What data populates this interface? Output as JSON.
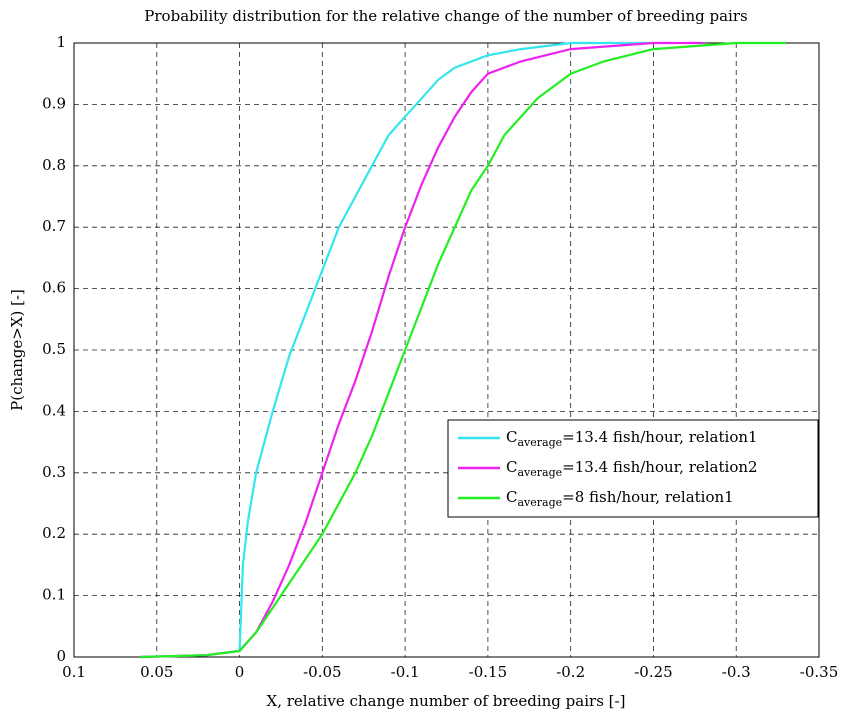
{
  "chart_data": {
    "type": "line",
    "title": "Probability distribution for the relative change of the number of breeding pairs",
    "x_label": "X, relative change number of breeding pairs [-]",
    "y_label": "P(change>X) [-]",
    "xlim": [
      0.1,
      -0.35
    ],
    "ylim": [
      0,
      1
    ],
    "xticks": [
      0.1,
      0.05,
      0,
      -0.05,
      -0.1,
      -0.15,
      -0.2,
      -0.25,
      -0.3,
      -0.35
    ],
    "yticks": [
      0,
      0.1,
      0.2,
      0.3,
      0.4,
      0.5,
      0.6,
      0.7,
      0.8,
      0.9,
      1
    ],
    "grid": true,
    "legend": "lower right",
    "series": [
      {
        "name": [
          "C",
          "average",
          "=13.4 fish/hour, relation1"
        ],
        "color": "#33e6ee",
        "x": [
          0.06,
          0.02,
          0,
          -0.002,
          -0.005,
          -0.01,
          -0.02,
          -0.03,
          -0.04,
          -0.05,
          -0.06,
          -0.07,
          -0.08,
          -0.09,
          -0.1,
          -0.11,
          -0.12,
          -0.13,
          -0.15,
          -0.17,
          -0.2,
          -0.25
        ],
        "values": [
          0,
          0.003,
          0.01,
          0.15,
          0.22,
          0.3,
          0.4,
          0.49,
          0.56,
          0.63,
          0.7,
          0.75,
          0.8,
          0.85,
          0.88,
          0.91,
          0.94,
          0.96,
          0.98,
          0.99,
          1,
          1
        ]
      },
      {
        "name": [
          "C",
          "average",
          "=13.4 fish/hour, relation2"
        ],
        "color": "#ee22ee",
        "x": [
          0.06,
          0.02,
          0,
          -0.01,
          -0.02,
          -0.03,
          -0.04,
          -0.05,
          -0.06,
          -0.07,
          -0.08,
          -0.09,
          -0.1,
          -0.11,
          -0.12,
          -0.13,
          -0.14,
          -0.15,
          -0.17,
          -0.2,
          -0.25,
          -0.28
        ],
        "values": [
          0,
          0.003,
          0.01,
          0.04,
          0.09,
          0.15,
          0.22,
          0.3,
          0.38,
          0.45,
          0.53,
          0.62,
          0.7,
          0.77,
          0.83,
          0.88,
          0.92,
          0.95,
          0.97,
          0.99,
          1,
          1
        ]
      },
      {
        "name": [
          "C",
          "average",
          "=8 fish/hour, relation1"
        ],
        "color": "#22ee22",
        "x": [
          0.06,
          0.02,
          0,
          -0.01,
          -0.02,
          -0.03,
          -0.05,
          -0.07,
          -0.08,
          -0.09,
          -0.1,
          -0.11,
          -0.12,
          -0.13,
          -0.14,
          -0.15,
          -0.16,
          -0.18,
          -0.2,
          -0.22,
          -0.25,
          -0.3,
          -0.33
        ],
        "values": [
          0,
          0.003,
          0.01,
          0.04,
          0.08,
          0.12,
          0.2,
          0.3,
          0.36,
          0.43,
          0.5,
          0.57,
          0.64,
          0.7,
          0.76,
          0.8,
          0.85,
          0.91,
          0.95,
          0.97,
          0.99,
          1,
          1
        ]
      }
    ]
  }
}
